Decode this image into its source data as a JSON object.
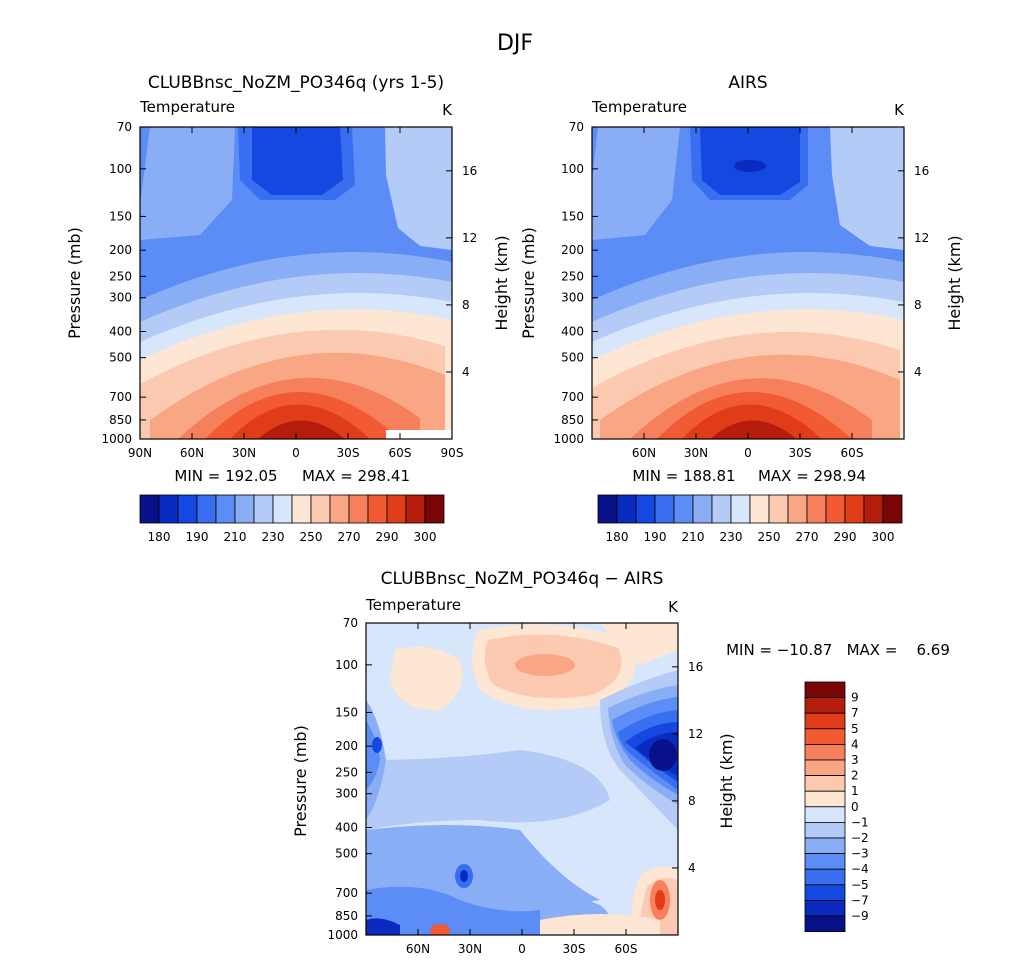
{
  "figure": {
    "season": "DJF"
  },
  "chart_data": [
    {
      "type": "heatmap",
      "id": "model",
      "title": "CLUBBnsc_NoZM_PO346q (yrs 1-5)",
      "left_label": "Temperature",
      "units_label": "K",
      "ylabel": "Pressure (mb)",
      "ylabel_right": "Height (km)",
      "x_ticks": [
        "90N",
        "60N",
        "30N",
        "0",
        "30S",
        "60S",
        "90S"
      ],
      "y_ticks": [
        "70",
        "100",
        "150",
        "200",
        "250",
        "300",
        "400",
        "500",
        "700",
        "850",
        "1000"
      ],
      "y_right_ticks": [
        "16",
        "12",
        "8",
        "4"
      ],
      "min_text": "MIN = 192.05",
      "max_text": "MAX = 298.41",
      "colorbar_labels": [
        "180",
        "190",
        "210",
        "230",
        "250",
        "270",
        "290",
        "300"
      ]
    },
    {
      "type": "heatmap",
      "id": "obs",
      "title": "AIRS",
      "left_label": "Temperature",
      "units_label": "K",
      "ylabel": "Pressure (mb)",
      "ylabel_right": "Height (km)",
      "x_ticks": [
        "60N",
        "30N",
        "0",
        "30S",
        "60S"
      ],
      "y_ticks": [
        "70",
        "100",
        "150",
        "200",
        "250",
        "300",
        "400",
        "500",
        "700",
        "850",
        "1000"
      ],
      "y_right_ticks": [
        "16",
        "12",
        "8",
        "4"
      ],
      "min_text": "MIN = 188.81",
      "max_text": "MAX = 298.94",
      "colorbar_labels": [
        "180",
        "190",
        "210",
        "230",
        "250",
        "270",
        "290",
        "300"
      ]
    },
    {
      "type": "heatmap",
      "id": "diff",
      "title": "CLUBBnsc_NoZM_PO346q − AIRS",
      "left_label": "Temperature",
      "units_label": "K",
      "ylabel": "Pressure (mb)",
      "ylabel_right": "Height (km)",
      "x_ticks": [
        "60N",
        "30N",
        "0",
        "30S",
        "60S"
      ],
      "y_ticks": [
        "70",
        "100",
        "150",
        "200",
        "250",
        "300",
        "400",
        "500",
        "700",
        "850",
        "1000"
      ],
      "y_right_ticks": [
        "16",
        "12",
        "8",
        "4"
      ],
      "min_max_text": "MIN = −10.87   MAX =    6.69",
      "colorbar_labels": [
        "9",
        "7",
        "5",
        "4",
        "3",
        "2",
        "1",
        "0",
        "−1",
        "−2",
        "−3",
        "−4",
        "−5",
        "−7",
        "−9"
      ]
    }
  ],
  "colors": {
    "abs_scale": [
      "#08118a",
      "#0a2bc0",
      "#1448e0",
      "#3a6ef0",
      "#5c8cf5",
      "#8aaef5",
      "#b4cbf8",
      "#d8e6fb",
      "#fde6d4",
      "#fccab0",
      "#f9a685",
      "#f6805c",
      "#f15a33",
      "#e03c18",
      "#b41d0c",
      "#7a0505"
    ],
    "diff_scale": [
      "#7a0505",
      "#b41d0c",
      "#e03c18",
      "#f15a33",
      "#f6805c",
      "#f9a685",
      "#fccab0",
      "#fde6d4",
      "#d8e6fb",
      "#b4cbf8",
      "#8aaef5",
      "#5c8cf5",
      "#3a6ef0",
      "#1448e0",
      "#0a2bc0",
      "#08118a"
    ]
  }
}
